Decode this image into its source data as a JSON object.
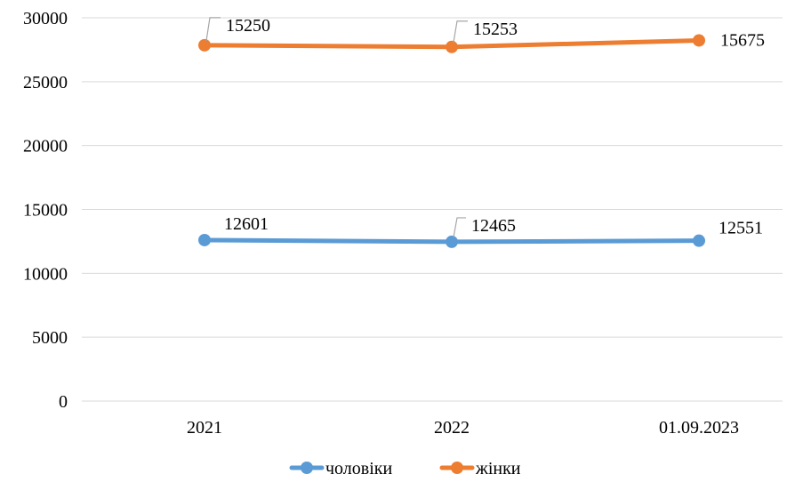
{
  "chart_data": {
    "type": "line",
    "title": "",
    "xlabel": "",
    "ylabel": "",
    "categories": [
      "2021",
      "2022",
      "01.09.2023"
    ],
    "ylim": [
      0,
      30000
    ],
    "yticks": [
      "0",
      "5000",
      "10000",
      "15000",
      "20000",
      "25000",
      "30000"
    ],
    "grid": true,
    "legend": "bottom",
    "series": [
      {
        "name": "чоловіки",
        "color": "#5B9BD5",
        "values": [
          12601,
          12465,
          12551
        ],
        "labels": [
          "12601",
          "12465",
          "12551"
        ]
      },
      {
        "name": "жінки",
        "color": "#ED7D31",
        "values": [
          27851,
          27718,
          28226
        ],
        "labels": [
          "15250",
          "15253",
          "15675"
        ]
      }
    ]
  }
}
